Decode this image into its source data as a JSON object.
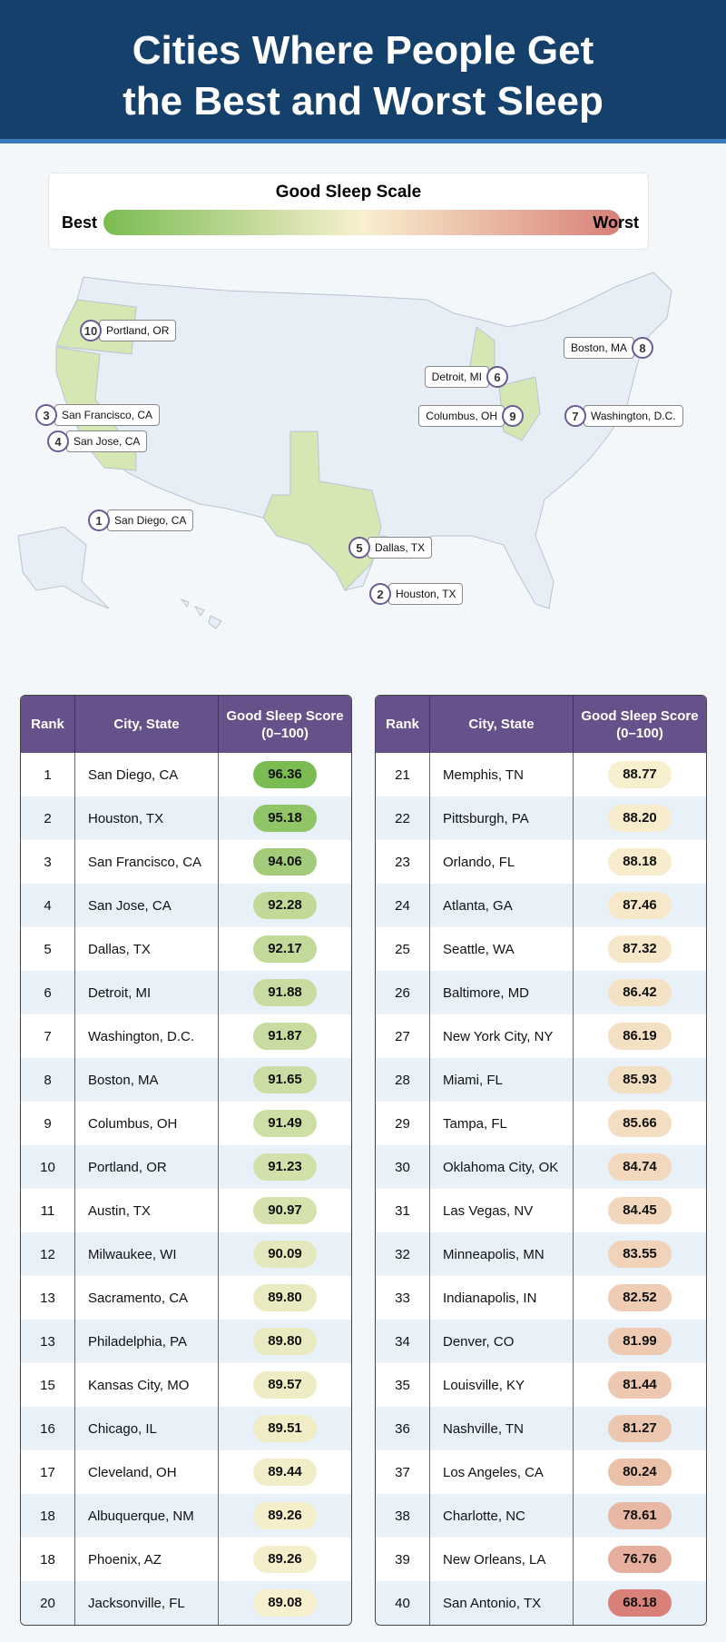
{
  "title_line1": "Cities Where People Get",
  "title_line2": "the Best and Worst Sleep",
  "legend": {
    "title": "Good Sleep Scale",
    "best": "Best",
    "worst": "Worst",
    "colors": [
      "#7abc51",
      "#f8f0cf",
      "#d98078"
    ]
  },
  "map": {
    "highlight_color": "#d5e8b4",
    "state_color": "#e8eef5",
    "markers": [
      {
        "rank": "10",
        "label": "Portland, OR"
      },
      {
        "rank": "8",
        "label": "Boston, MA"
      },
      {
        "rank": "6",
        "label": "Detroit, MI"
      },
      {
        "rank": "3",
        "label": "San Francisco, CA"
      },
      {
        "rank": "9",
        "label": "Columbus, OH"
      },
      {
        "rank": "7",
        "label": "Washington, D.C."
      },
      {
        "rank": "4",
        "label": "San Jose, CA"
      },
      {
        "rank": "1",
        "label": "San Diego, CA"
      },
      {
        "rank": "5",
        "label": "Dallas, TX"
      },
      {
        "rank": "2",
        "label": "Houston, TX"
      }
    ]
  },
  "table": {
    "headers": [
      "Rank",
      "City, State",
      "Good Sleep Score (0–100)"
    ],
    "rows": [
      [
        "1",
        "San Diego, CA",
        "96.36"
      ],
      [
        "2",
        "Houston, TX",
        "95.18"
      ],
      [
        "3",
        "San Francisco, CA",
        "94.06"
      ],
      [
        "4",
        "San Jose, CA",
        "92.28"
      ],
      [
        "5",
        "Dallas, TX",
        "92.17"
      ],
      [
        "6",
        "Detroit, MI",
        "91.88"
      ],
      [
        "7",
        "Washington, D.C.",
        "91.87"
      ],
      [
        "8",
        "Boston, MA",
        "91.65"
      ],
      [
        "9",
        "Columbus, OH",
        "91.49"
      ],
      [
        "10",
        "Portland, OR",
        "91.23"
      ],
      [
        "11",
        "Austin, TX",
        "90.97"
      ],
      [
        "12",
        "Milwaukee, WI",
        "90.09"
      ],
      [
        "13",
        "Sacramento, CA",
        "89.80"
      ],
      [
        "13",
        "Philadelphia, PA",
        "89.80"
      ],
      [
        "15",
        "Kansas City, MO",
        "89.57"
      ],
      [
        "16",
        "Chicago, IL",
        "89.51"
      ],
      [
        "17",
        "Cleveland, OH",
        "89.44"
      ],
      [
        "18",
        "Albuquerque, NM",
        "89.26"
      ],
      [
        "18",
        "Phoenix, AZ",
        "89.26"
      ],
      [
        "20",
        "Jacksonville, FL",
        "89.08"
      ],
      [
        "21",
        "Memphis, TN",
        "88.77"
      ],
      [
        "22",
        "Pittsburgh, PA",
        "88.20"
      ],
      [
        "23",
        "Orlando, FL",
        "88.18"
      ],
      [
        "24",
        "Atlanta, GA",
        "87.46"
      ],
      [
        "25",
        "Seattle, WA",
        "87.32"
      ],
      [
        "26",
        "Baltimore, MD",
        "86.42"
      ],
      [
        "27",
        "New York City, NY",
        "86.19"
      ],
      [
        "28",
        "Miami, FL",
        "85.93"
      ],
      [
        "29",
        "Tampa, FL",
        "85.66"
      ],
      [
        "30",
        "Oklahoma City, OK",
        "84.74"
      ],
      [
        "31",
        "Las Vegas, NV",
        "84.45"
      ],
      [
        "32",
        "Minneapolis, MN",
        "83.55"
      ],
      [
        "33",
        "Indianapolis, IN",
        "82.52"
      ],
      [
        "34",
        "Denver, CO",
        "81.99"
      ],
      [
        "35",
        "Louisville, KY",
        "81.44"
      ],
      [
        "36",
        "Nashville, TN",
        "81.27"
      ],
      [
        "37",
        "Los Angeles, CA",
        "80.24"
      ],
      [
        "38",
        "Charlotte, NC",
        "78.61"
      ],
      [
        "39",
        "New Orleans, LA",
        "76.76"
      ],
      [
        "40",
        "San Antonio, TX",
        "68.18"
      ]
    ]
  }
}
